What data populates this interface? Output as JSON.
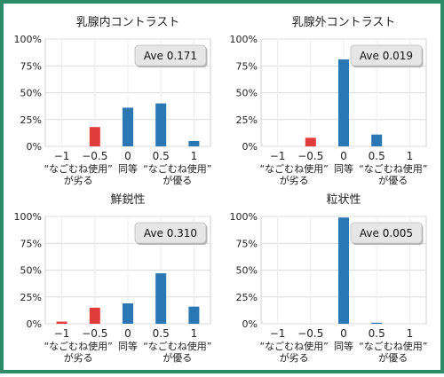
{
  "chart_data": [
    {
      "type": "bar",
      "title": "乳腺内コントラスト",
      "ave_badge": "Ave 0.171",
      "categories": [
        "−1",
        "−0.5",
        "0",
        "0.5",
        "1"
      ],
      "values": [
        0,
        18,
        36,
        40,
        5
      ],
      "ylim": [
        0,
        100
      ],
      "yticks": [
        "0%",
        "25%",
        "50%",
        "75%",
        "100%"
      ],
      "left_group_label": [
        "“なごむね使用”",
        "が劣る"
      ],
      "center_group_label": "同等",
      "right_group_label": [
        "“なごむね使用”",
        "が優る"
      ],
      "colors": [
        "#e23b3b",
        "#e23b3b",
        "#2a77b4",
        "#2a77b4",
        "#2a77b4"
      ],
      "grid": true
    },
    {
      "type": "bar",
      "title": "乳腺外コントラスト",
      "ave_badge": "Ave 0.019",
      "categories": [
        "−1",
        "−0.5",
        "0",
        "0.5",
        "1"
      ],
      "values": [
        0,
        8,
        81,
        11,
        0
      ],
      "ylim": [
        0,
        100
      ],
      "yticks": [
        "0%",
        "25%",
        "50%",
        "75%",
        "100%"
      ],
      "left_group_label": [
        "“なごむね使用”",
        "が劣る"
      ],
      "center_group_label": "同等",
      "right_group_label": [
        "“なごむね使用”",
        "が優る"
      ],
      "colors": [
        "#e23b3b",
        "#e23b3b",
        "#2a77b4",
        "#2a77b4",
        "#2a77b4"
      ],
      "grid": true
    },
    {
      "type": "bar",
      "title": "鮮鋭性",
      "ave_badge": "Ave 0.310",
      "categories": [
        "−1",
        "−0.5",
        "0",
        "0.5",
        "1"
      ],
      "values": [
        2,
        15,
        19,
        47,
        16
      ],
      "ylim": [
        0,
        100
      ],
      "yticks": [
        "0%",
        "25%",
        "50%",
        "75%",
        "100%"
      ],
      "left_group_label": [
        "“なごむね使用”",
        "が劣る"
      ],
      "center_group_label": "同等",
      "right_group_label": [
        "“なごむね使用”",
        "が優る"
      ],
      "colors": [
        "#e23b3b",
        "#e23b3b",
        "#2a77b4",
        "#2a77b4",
        "#2a77b4"
      ],
      "grid": true
    },
    {
      "type": "bar",
      "title": "粒状性",
      "ave_badge": "Ave 0.005",
      "categories": [
        "−1",
        "−0.5",
        "0",
        "0.5",
        "1"
      ],
      "values": [
        0,
        0,
        99,
        1,
        0
      ],
      "ylim": [
        0,
        100
      ],
      "yticks": [
        "0%",
        "25%",
        "50%",
        "75%",
        "100%"
      ],
      "left_group_label": [
        "“なごむね使用”",
        "が劣る"
      ],
      "center_group_label": "同等",
      "right_group_label": [
        "“なごむね使用”",
        "が優る"
      ],
      "colors": [
        "#e23b3b",
        "#e23b3b",
        "#2a77b4",
        "#2a77b4",
        "#2a77b4"
      ],
      "grid": true
    }
  ]
}
